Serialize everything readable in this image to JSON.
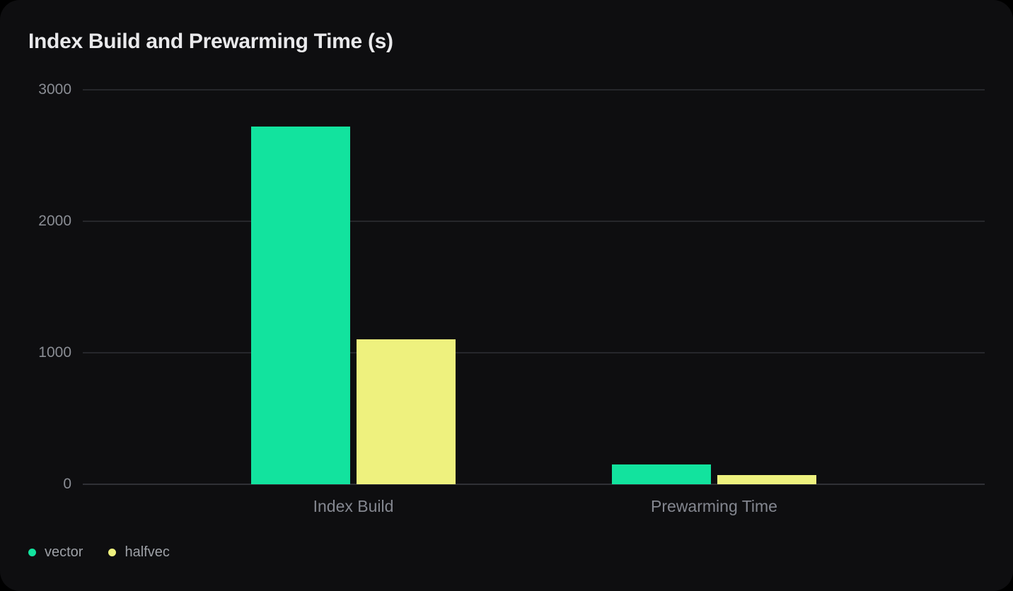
{
  "chart_data": {
    "type": "bar",
    "title": "Index Build and Prewarming Time (s)",
    "categories": [
      "Index Build",
      "Prewarming Time"
    ],
    "series": [
      {
        "name": "vector",
        "color": "#12e39e",
        "values": [
          2720,
          150
        ]
      },
      {
        "name": "halfvec",
        "color": "#eef17e",
        "values": [
          1100,
          70
        ]
      }
    ],
    "xlabel": "",
    "ylabel": "",
    "ylim": [
      0,
      3000
    ],
    "yticks": [
      0,
      1000,
      2000,
      3000
    ],
    "grid": "horizontal-only",
    "legend_position": "bottom-left"
  },
  "colors": {
    "page_background": "#000000",
    "card_background": "#0e0e10",
    "gridline": "#26272b",
    "axis_line": "#303136",
    "title_text": "#e9e9eb",
    "axis_label_text": "#8a8d94",
    "legend_text": "#9da0a6",
    "series_vector": "#12e39e",
    "series_halfvec": "#eef17e"
  }
}
